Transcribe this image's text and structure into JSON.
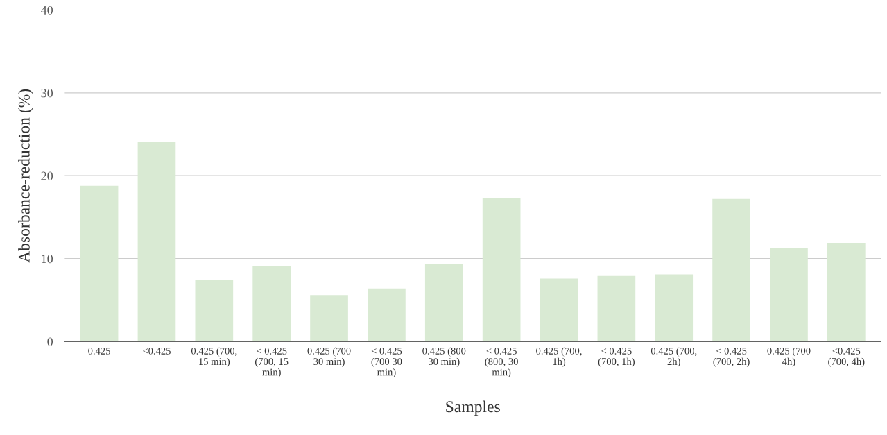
{
  "chart_data": {
    "type": "bar",
    "xlabel": "Samples",
    "ylabel": "Absorbance-reduction (%)",
    "categories": [
      "0.425",
      "<0.425",
      "0.425 (700, 15 min)",
      "< 0.425 (700, 15 min)",
      "0.425 (700 30 min)",
      "< 0.425 (700 30 min)",
      "0.425 (800 30 min)",
      "< 0.425 (800, 30 min)",
      "0.425 (700, 1h)",
      "< 0.425 (700, 1h)",
      "0.425 (700, 2h)",
      "< 0.425 (700, 2h)",
      "0.425 (700 4h)",
      "<0.425 (700, 4h)"
    ],
    "values": [
      18.8,
      24.1,
      7.4,
      9.1,
      5.6,
      6.4,
      9.4,
      17.3,
      7.6,
      7.9,
      8.1,
      17.2,
      11.3,
      11.9
    ],
    "color": "#d9ead3",
    "ylim": [
      0,
      40
    ],
    "yticks": [
      0,
      10,
      20,
      30,
      40
    ],
    "grid": "y",
    "legend": false
  }
}
